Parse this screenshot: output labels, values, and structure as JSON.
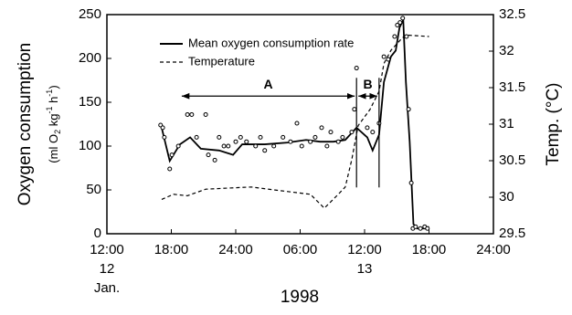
{
  "chart_data": {
    "type": "line",
    "ylabel": "Oxygen  consumption",
    "ylabel_units": [
      "(ml O",
      "2",
      " kg",
      "-1",
      " h",
      "-1",
      ")"
    ],
    "y2label": "Temp. (°C)",
    "xlabel": "1998",
    "xlim": [
      0,
      72
    ],
    "xticks": [
      {
        "value": 0,
        "label": "12:00"
      },
      {
        "value": 12,
        "label": "18:00"
      },
      {
        "value": 24,
        "label": "24:00"
      },
      {
        "value": 36,
        "label": "06:00"
      },
      {
        "value": 48,
        "label": "12:00"
      },
      {
        "value": 60,
        "label": "18:00"
      },
      {
        "value": 72,
        "label": "24:00"
      }
    ],
    "x_sublabels": [
      {
        "value": 0,
        "label": "12"
      },
      {
        "value": 48,
        "label": "13"
      }
    ],
    "x_sublabels2": [
      {
        "value": 0,
        "label": "Jan."
      }
    ],
    "ylim": [
      0,
      250
    ],
    "yticks": [
      0,
      50,
      100,
      150,
      200,
      250
    ],
    "y2lim": [
      29.5,
      32.5
    ],
    "y2ticks": [
      29.5,
      30,
      30.5,
      31,
      31.5,
      32,
      32.5
    ],
    "series": [
      {
        "name": "Mean oxygen consumption rate",
        "color": "#000000",
        "dashed": false,
        "x": [
          10.2,
          11.7,
          13.6,
          15.5,
          17.5,
          20.9,
          23.5,
          25.2,
          29.4,
          33.7,
          37.1,
          39.7,
          42.2,
          44.4,
          46.5,
          48.5,
          49.5,
          50.7,
          51.6,
          52.9,
          53.8,
          54.5,
          55.2,
          55.7,
          56.4,
          57.1,
          57.8,
          59.3,
          60.0
        ],
        "values": [
          121,
          83,
          102,
          110,
          97,
          95,
          90,
          102,
          102,
          104,
          107,
          105,
          105,
          107,
          121,
          110,
          95,
          113,
          173,
          202,
          209,
          235,
          244,
          173,
          105,
          11,
          6,
          6,
          8
        ]
      },
      {
        "name": "Temperature",
        "color": "#000000",
        "dashed": true,
        "axis": "y2",
        "x": [
          10.2,
          12.4,
          14.98,
          18.4,
          26.9,
          31.15,
          37.9,
          40.5,
          43.1,
          44.4,
          45.6,
          46.8,
          49.0,
          50.7,
          51.6,
          52.9,
          55.0,
          55.8,
          60.0
        ],
        "values": [
          29.97,
          30.04,
          30.02,
          30.11,
          30.14,
          30.1,
          30.04,
          29.85,
          30.04,
          30.14,
          30.51,
          30.98,
          31.2,
          31.45,
          31.83,
          32.01,
          32.18,
          32.22,
          32.2
        ]
      }
    ],
    "points": {
      "color": "#000000",
      "x": [
        10.0,
        10.4,
        10.7,
        11.7,
        12.1,
        13.3,
        15.0,
        15.8,
        16.7,
        18.4,
        18.9,
        20.1,
        20.9,
        21.8,
        22.6,
        24.0,
        24.9,
        26.0,
        27.7,
        28.6,
        29.4,
        31.1,
        32.8,
        34.2,
        35.4,
        36.3,
        37.9,
        38.8,
        40.0,
        41.0,
        41.7,
        43.1,
        43.9,
        45.6,
        46.1,
        46.5,
        48.5,
        49.5,
        50.7,
        51.6,
        52.4,
        53.6,
        54.1,
        54.6,
        55.1,
        55.8,
        56.2,
        56.7,
        57.0,
        57.5,
        58.4,
        59.2,
        59.7
      ],
      "values": [
        124,
        121,
        110,
        74,
        90,
        100,
        136,
        136,
        110,
        136,
        90,
        84,
        110,
        100,
        100,
        105,
        110,
        105,
        100,
        110,
        95,
        100,
        110,
        105,
        126,
        100,
        105,
        110,
        121,
        100,
        116,
        105,
        110,
        116,
        142,
        189,
        121,
        116,
        126,
        202,
        199,
        225,
        238,
        241,
        246,
        225,
        142,
        58,
        6,
        8,
        6,
        8,
        6
      ]
    },
    "periods": [
      {
        "label": "A",
        "start": 13.6,
        "end": 46.5,
        "y": 157
      },
      {
        "label": "B",
        "start": 46.5,
        "end": 50.7,
        "y": 157
      }
    ]
  }
}
